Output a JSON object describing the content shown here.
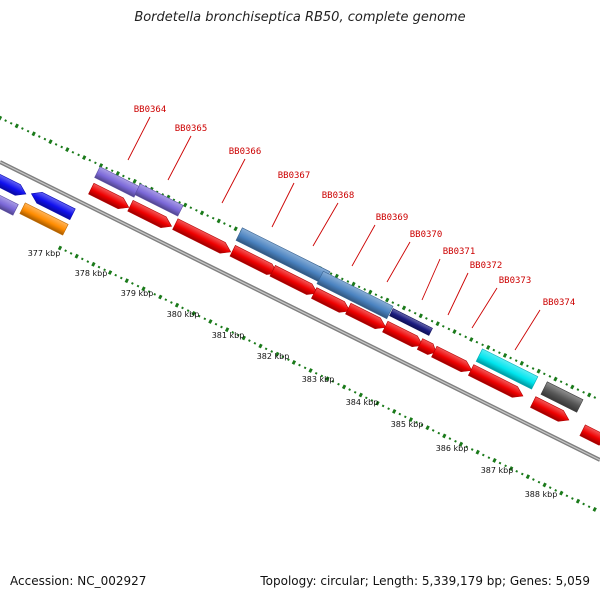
{
  "title": "Bordetella bronchiseptica RB50, complete genome",
  "footer": {
    "accession": "Accession: NC_002927",
    "summary": "Topology: circular; Length: 5,339,179 bp; Genes: 5,059"
  },
  "colors": {
    "label": "#cc0000",
    "backbone": "#808080",
    "dotted_track": "#1a7a1a",
    "cds_red": "#ee0000",
    "blue": "#1010ee",
    "purple": "#7b68d8",
    "orange": "#ff8c00",
    "steelblue": "#4a82c0",
    "navy": "#1a1a80",
    "cyan": "#00e5ee",
    "gray": "#555555"
  },
  "position_labels": [
    "377 kbp",
    "378 kbp",
    "379 kbp",
    "380 kbp",
    "381 kbp",
    "382 kbp",
    "383 kbp",
    "384 kbp",
    "385 kbp",
    "386 kbp",
    "387 kbp",
    "388 kbp"
  ],
  "gene_labels": [
    "BB0364",
    "BB0365",
    "BB0366",
    "BB0367",
    "BB0368",
    "BB0369",
    "BB0370",
    "BB0371",
    "BB0372",
    "BB0373",
    "BB0374"
  ]
}
